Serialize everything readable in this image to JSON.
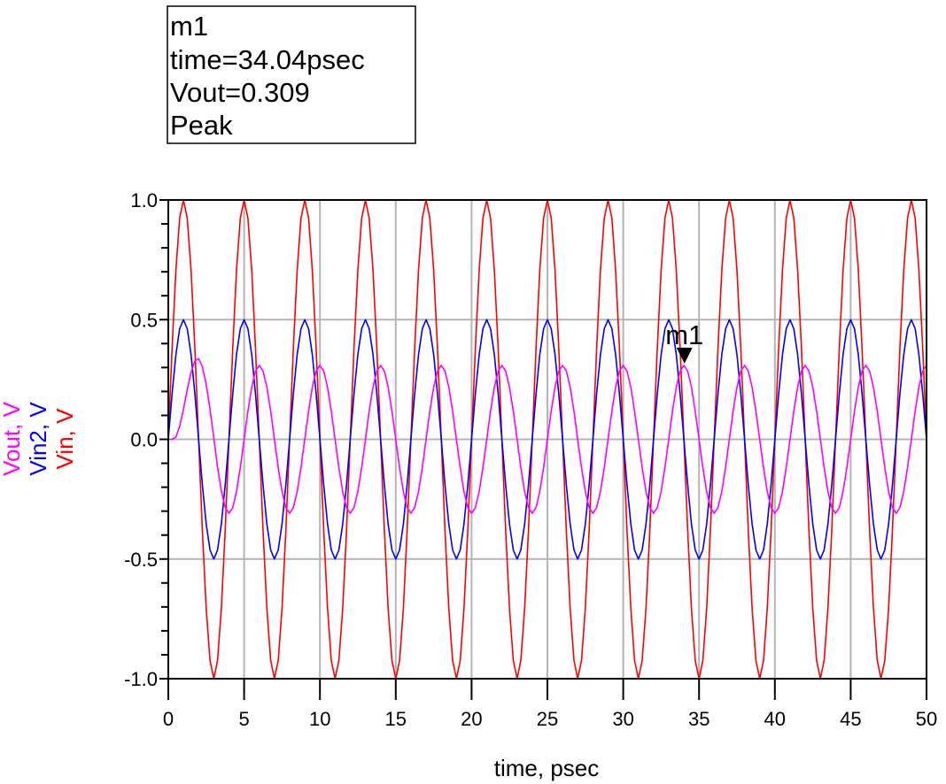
{
  "marker_box": {
    "name": "m1",
    "line1": "time=34.04psec",
    "line2": "Vout=0.309",
    "line3": "Peak"
  },
  "chart_data": {
    "type": "line",
    "xlabel": "time, psec",
    "ylabel_parts": [
      {
        "text": "Vout, V",
        "color": "#ff00ff"
      },
      {
        "text": "Vin2, V",
        "color": "#0000ff"
      },
      {
        "text": "Vin, V",
        "color": "#ff0000"
      }
    ],
    "xlim": [
      0,
      50
    ],
    "ylim": [
      -1.0,
      1.0
    ],
    "x_ticks": [
      "0",
      "5",
      "10",
      "15",
      "20",
      "25",
      "30",
      "35",
      "40",
      "45",
      "50"
    ],
    "y_ticks": [
      "-1.0",
      "-0.5",
      "0.0",
      "0.5",
      "1.0"
    ],
    "grid": true,
    "x": {
      "start": 0,
      "stop": 50,
      "step": 0.25
    },
    "series": [
      {
        "name": "Vin",
        "color": "#ff0000",
        "values": [
          0,
          0.383,
          0.707,
          0.924,
          1,
          0.924,
          0.707,
          0.383,
          0,
          -0.383,
          -0.707,
          -0.924,
          -1,
          -0.924,
          -0.707,
          -0.383,
          0,
          0.383,
          0.707,
          0.924,
          1,
          0.924,
          0.707,
          0.383,
          0,
          -0.383,
          -0.707,
          -0.924,
          -1,
          -0.924,
          -0.707,
          -0.383,
          0,
          0.383,
          0.707,
          0.924,
          1,
          0.924,
          0.707,
          0.383,
          0,
          -0.383,
          -0.707,
          -0.924,
          -1,
          -0.924,
          -0.707,
          -0.383,
          0,
          0.383,
          0.707,
          0.924,
          1,
          0.924,
          0.707,
          0.383,
          0,
          -0.383,
          -0.707,
          -0.924,
          -1,
          -0.924,
          -0.707,
          -0.383,
          0,
          0.383,
          0.707,
          0.924,
          1,
          0.924,
          0.707,
          0.383,
          0,
          -0.383,
          -0.707,
          -0.924,
          -1,
          -0.924,
          -0.707,
          -0.383,
          0,
          0.383,
          0.707,
          0.924,
          1,
          0.924,
          0.707,
          0.383,
          0,
          -0.383,
          -0.707,
          -0.924,
          -1,
          -0.924,
          -0.707,
          -0.383,
          0,
          0.383,
          0.707,
          0.924,
          1,
          0.924,
          0.707,
          0.383,
          0,
          -0.383,
          -0.707,
          -0.924,
          -1,
          -0.924,
          -0.707,
          -0.383,
          0,
          0.383,
          0.707,
          0.924,
          1,
          0.924,
          0.707,
          0.383,
          0,
          -0.383,
          -0.707,
          -0.924,
          -1,
          -0.924,
          -0.707,
          -0.383,
          0,
          0.383,
          0.707,
          0.924,
          1,
          0.924,
          0.707,
          0.383,
          0,
          -0.383,
          -0.707,
          -0.924,
          -1,
          -0.924,
          -0.707,
          -0.383,
          0,
          0.383,
          0.707,
          0.924,
          1,
          0.924,
          0.707,
          0.383,
          0,
          -0.383,
          -0.707,
          -0.924,
          -1,
          -0.924,
          -0.707,
          -0.383,
          0,
          0.383,
          0.707,
          0.924,
          1,
          0.924,
          0.707,
          0.383,
          0,
          -0.383,
          -0.707,
          -0.924,
          -1,
          -0.924,
          -0.707,
          -0.383,
          0,
          0.383,
          0.707,
          0.924,
          1,
          0.924,
          0.707,
          0.383,
          0,
          -0.383,
          -0.707,
          -0.924,
          -1,
          -0.924,
          -0.707,
          -0.383,
          0,
          0.383,
          0.707,
          0.924,
          1,
          0.924,
          0.707,
          0.383,
          0
        ]
      },
      {
        "name": "Vin2",
        "color": "#0000ff",
        "values": [
          0,
          0.191,
          0.354,
          0.462,
          0.5,
          0.462,
          0.354,
          0.191,
          0,
          -0.191,
          -0.354,
          -0.462,
          -0.5,
          -0.462,
          -0.354,
          -0.191,
          0,
          0.191,
          0.354,
          0.462,
          0.5,
          0.462,
          0.354,
          0.191,
          0,
          -0.191,
          -0.354,
          -0.462,
          -0.5,
          -0.462,
          -0.354,
          -0.191,
          0,
          0.191,
          0.354,
          0.462,
          0.5,
          0.462,
          0.354,
          0.191,
          0,
          -0.191,
          -0.354,
          -0.462,
          -0.5,
          -0.462,
          -0.354,
          -0.191,
          0,
          0.191,
          0.354,
          0.462,
          0.5,
          0.462,
          0.354,
          0.191,
          0,
          -0.191,
          -0.354,
          -0.462,
          -0.5,
          -0.462,
          -0.354,
          -0.191,
          0,
          0.191,
          0.354,
          0.462,
          0.5,
          0.462,
          0.354,
          0.191,
          0,
          -0.191,
          -0.354,
          -0.462,
          -0.5,
          -0.462,
          -0.354,
          -0.191,
          0,
          0.191,
          0.354,
          0.462,
          0.5,
          0.462,
          0.354,
          0.191,
          0,
          -0.191,
          -0.354,
          -0.462,
          -0.5,
          -0.462,
          -0.354,
          -0.191,
          0,
          0.191,
          0.354,
          0.462,
          0.5,
          0.462,
          0.354,
          0.191,
          0,
          -0.191,
          -0.354,
          -0.462,
          -0.5,
          -0.462,
          -0.354,
          -0.191,
          0,
          0.191,
          0.354,
          0.462,
          0.5,
          0.462,
          0.354,
          0.191,
          0,
          -0.191,
          -0.354,
          -0.462,
          -0.5,
          -0.462,
          -0.354,
          -0.191,
          0,
          0.191,
          0.354,
          0.462,
          0.5,
          0.462,
          0.354,
          0.191,
          0,
          -0.191,
          -0.354,
          -0.462,
          -0.5,
          -0.462,
          -0.354,
          -0.191,
          0,
          0.191,
          0.354,
          0.462,
          0.5,
          0.462,
          0.354,
          0.191,
          0,
          -0.191,
          -0.354,
          -0.462,
          -0.5,
          -0.462,
          -0.354,
          -0.191,
          0,
          0.191,
          0.354,
          0.462,
          0.5,
          0.462,
          0.354,
          0.191,
          0,
          -0.191,
          -0.354,
          -0.462,
          -0.5,
          -0.462,
          -0.354,
          -0.191,
          0,
          0.191,
          0.354,
          0.462,
          0.5,
          0.462,
          0.354,
          0.191,
          0,
          -0.191,
          -0.354,
          -0.462,
          -0.5,
          -0.462,
          -0.354,
          -0.191,
          0,
          0.191,
          0.354,
          0.462,
          0.5,
          0.462,
          0.354,
          0.191,
          0
        ]
      },
      {
        "name": "Vout",
        "color": "#ff00ff",
        "values": [
          0,
          0,
          0.009,
          0.054,
          0.125,
          0.207,
          0.28,
          0.327,
          0.337,
          0.304,
          0.23,
          0.126,
          0.005,
          -0.115,
          -0.216,
          -0.284,
          -0.309,
          -0.285,
          -0.218,
          -0.118,
          0,
          0.118,
          0.218,
          0.285,
          0.309,
          0.285,
          0.218,
          0.118,
          0,
          -0.118,
          -0.218,
          -0.285,
          -0.309,
          -0.285,
          -0.218,
          -0.118,
          0,
          0.118,
          0.218,
          0.285,
          0.309,
          0.285,
          0.218,
          0.118,
          0,
          -0.118,
          -0.218,
          -0.285,
          -0.309,
          -0.285,
          -0.218,
          -0.118,
          0,
          0.118,
          0.218,
          0.285,
          0.309,
          0.285,
          0.218,
          0.118,
          0,
          -0.118,
          -0.218,
          -0.285,
          -0.309,
          -0.285,
          -0.218,
          -0.118,
          0,
          0.118,
          0.218,
          0.285,
          0.309,
          0.285,
          0.218,
          0.118,
          0,
          -0.118,
          -0.218,
          -0.285,
          -0.309,
          -0.285,
          -0.218,
          -0.118,
          0,
          0.118,
          0.218,
          0.285,
          0.309,
          0.285,
          0.218,
          0.118,
          0,
          -0.118,
          -0.218,
          -0.285,
          -0.309,
          -0.285,
          -0.218,
          -0.118,
          0,
          0.118,
          0.218,
          0.285,
          0.309,
          0.285,
          0.218,
          0.118,
          0,
          -0.118,
          -0.218,
          -0.285,
          -0.309,
          -0.285,
          -0.218,
          -0.118,
          0,
          0.118,
          0.218,
          0.285,
          0.309,
          0.285,
          0.218,
          0.118,
          0,
          -0.118,
          -0.218,
          -0.285,
          -0.309,
          -0.285,
          -0.218,
          -0.118,
          0,
          0.118,
          0.218,
          0.285,
          0.309,
          0.285,
          0.218,
          0.118,
          0,
          -0.118,
          -0.218,
          -0.285,
          -0.309,
          -0.285,
          -0.218,
          -0.118,
          0,
          0.118,
          0.218,
          0.285,
          0.309,
          0.285,
          0.218,
          0.118,
          0,
          -0.118,
          -0.218,
          -0.285,
          -0.309,
          -0.285,
          -0.218,
          -0.118,
          0,
          0.118,
          0.218,
          0.285,
          0.309,
          0.285,
          0.218,
          0.118,
          0,
          -0.118,
          -0.218,
          -0.285,
          -0.309,
          -0.285,
          -0.218,
          -0.118,
          0,
          0.118,
          0.218,
          0.285,
          0.309,
          0.285,
          0.218,
          0.118,
          0,
          -0.118,
          -0.218,
          -0.285,
          -0.309,
          -0.285,
          -0.218,
          -0.118,
          0,
          0.118,
          0.218,
          0.285,
          0.309
        ]
      }
    ],
    "marker": {
      "label": "m1",
      "x": 34.04,
      "y": 0.309,
      "series": "Vout"
    }
  }
}
